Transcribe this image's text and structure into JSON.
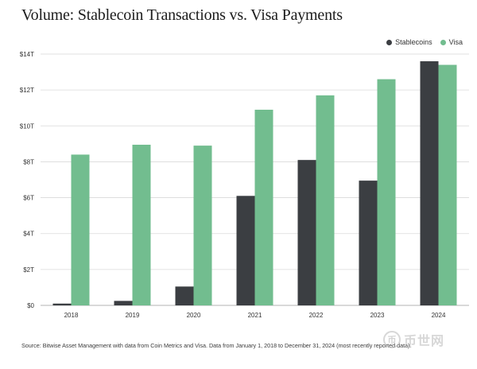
{
  "chart_data": {
    "type": "bar",
    "title": "Volume: Stablecoin Transactions vs. Visa Payments",
    "categories": [
      "2018",
      "2019",
      "2020",
      "2021",
      "2022",
      "2023",
      "2024"
    ],
    "series": [
      {
        "name": "Stablecoins",
        "color": "#3b3e42",
        "values": [
          0.1,
          0.25,
          1.05,
          6.1,
          8.1,
          6.95,
          13.6
        ]
      },
      {
        "name": "Visa",
        "color": "#72bd8f",
        "values": [
          8.4,
          8.95,
          8.9,
          10.9,
          11.7,
          12.6,
          13.4
        ]
      }
    ],
    "y_ticks": [
      "$0",
      "$2T",
      "$4T",
      "$6T",
      "$8T",
      "$10T",
      "$12T",
      "$14T"
    ],
    "ylim": [
      0,
      14
    ],
    "grid": true,
    "legend_position": "top-right",
    "source": "Source: Bitwise Asset Management with data from Coin Metrics and Visa. Data from January 1, 2018 to December 31, 2024 (most recently reported data)."
  },
  "watermark": {
    "logo_glyph": "币",
    "text": "币世网"
  }
}
